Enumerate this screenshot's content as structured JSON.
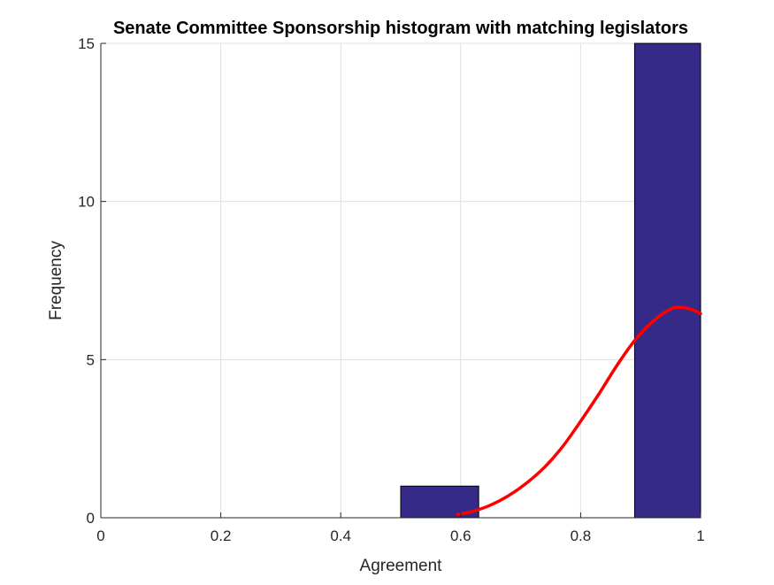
{
  "chart_data": {
    "type": "bar",
    "title": "Senate Committee Sponsorship histogram with matching legislators",
    "xlabel": "Agreement",
    "ylabel": "Frequency",
    "xlim": [
      0,
      1
    ],
    "ylim": [
      0,
      15
    ],
    "grid": true,
    "legend": "none",
    "x_ticks": [
      0,
      0.2,
      0.4,
      0.6,
      0.8,
      1
    ],
    "x_tick_labels": [
      "0",
      "0.2",
      "0.4",
      "0.6",
      "0.8",
      "1"
    ],
    "y_ticks": [
      0,
      5,
      10,
      15
    ],
    "y_tick_labels": [
      "0",
      "5",
      "10",
      "15"
    ],
    "histogram": {
      "bins": [
        {
          "start": 0.5,
          "end": 0.63,
          "count": 1
        },
        {
          "start": 0.89,
          "end": 1.0,
          "count": 15
        }
      ],
      "color": "#352A87",
      "edge_color": "#000000"
    },
    "fit_curve": {
      "color": "#FF0000",
      "x": [
        0.595,
        0.62,
        0.65,
        0.68,
        0.71,
        0.74,
        0.77,
        0.8,
        0.83,
        0.86,
        0.89,
        0.92,
        0.95,
        0.97,
        0.99,
        1.0
      ],
      "y": [
        0.1,
        0.2,
        0.4,
        0.7,
        1.1,
        1.6,
        2.25,
        3.05,
        3.9,
        4.8,
        5.6,
        6.2,
        6.6,
        6.65,
        6.55,
        6.45
      ]
    }
  }
}
